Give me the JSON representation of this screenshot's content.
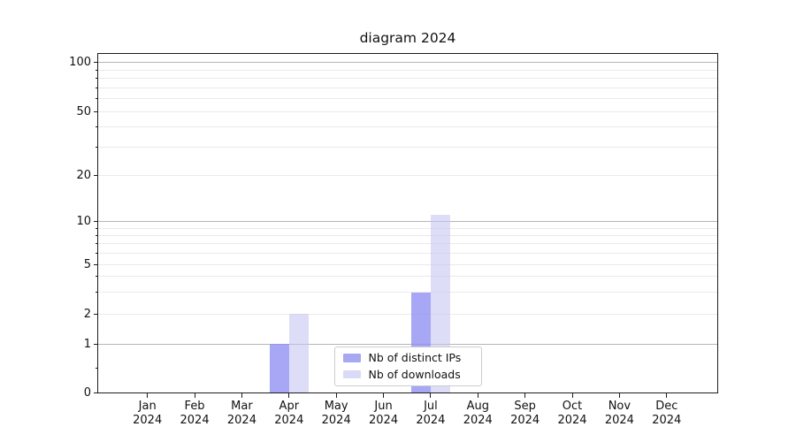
{
  "chart_data": {
    "type": "bar",
    "title": "diagram 2024",
    "year": "2024",
    "months": [
      "Jan",
      "Feb",
      "Mar",
      "Apr",
      "May",
      "Jun",
      "Jul",
      "Aug",
      "Sep",
      "Oct",
      "Nov",
      "Dec"
    ],
    "x_axis": {
      "tick_labels": [
        "Jan 2024",
        "Feb 2024",
        "Mar 2024",
        "Apr 2024",
        "May 2024",
        "Jun 2024",
        "Jul 2024",
        "Aug 2024",
        "Sep 2024",
        "Oct 2024",
        "Nov 2024",
        "Dec 2024"
      ]
    },
    "y_axis": {
      "scale": "symlog",
      "ticks": [
        0,
        1,
        2,
        5,
        10,
        20,
        50,
        100
      ],
      "minor_gridline_values": [
        2,
        3,
        4,
        5,
        6,
        7,
        8,
        9,
        20,
        30,
        40,
        50,
        60,
        70,
        80,
        90
      ],
      "major_gridline_values": [
        1,
        10,
        100
      ],
      "minor_tick_values": [
        0.5,
        3,
        4,
        6,
        7,
        8,
        9,
        30,
        40,
        60,
        70,
        80,
        90
      ],
      "ylim": [
        0,
        115
      ]
    },
    "series": [
      {
        "name": "Nb of distinct IPs",
        "swatch_color": "#a8a8f2",
        "bar_color": "rgba(140,140,243,0.77)",
        "values": [
          0,
          0,
          0,
          1,
          0,
          0,
          3,
          0,
          0,
          0,
          0,
          0
        ]
      },
      {
        "name": "Nb of downloads",
        "swatch_color": "#d9d9f8",
        "bar_color": "rgba(196,196,243,0.58)",
        "values": [
          0,
          0,
          0,
          2,
          0,
          0,
          11,
          0,
          0,
          0,
          0,
          0
        ]
      }
    ],
    "legend": {
      "position": "lower center",
      "entries": [
        "Nb of distinct IPs",
        "Nb of downloads"
      ]
    },
    "grid": {
      "major_color": "#b5b5b5",
      "minor_color": "#eaeaea"
    }
  }
}
